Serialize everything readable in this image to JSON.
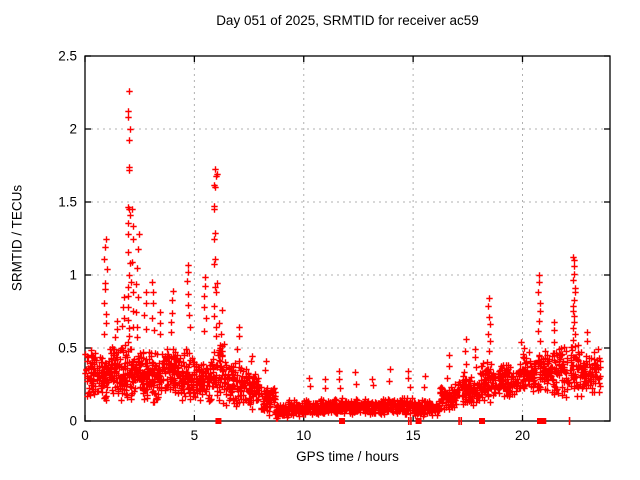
{
  "chart_data": {
    "type": "scatter",
    "title": "Day 051 of 2025, SRMTID for receiver ac59",
    "xlabel": "GPS time / hours",
    "ylabel": "SRMTID / TECUs",
    "xlim": [
      0,
      24
    ],
    "ylim": [
      0,
      2.5
    ],
    "xticks": [
      0,
      5,
      10,
      15,
      20
    ],
    "yticks": [
      0,
      0.5,
      1,
      1.5,
      2,
      2.5
    ],
    "grid": true,
    "legend": "none",
    "marker": {
      "shape": "plus",
      "color": "#ff0000",
      "size": 7
    },
    "colors": {
      "points": "#ff0000",
      "grid": "#b0b0b0",
      "axis": "#000000",
      "text": "#000000",
      "background": "#ffffff"
    },
    "max_point": {
      "x": 2.0,
      "y": 2.27
    },
    "data_x_end": 23.55,
    "bands": [
      [
        0.0,
        0.5,
        60,
        0.15,
        0.5
      ],
      [
        0.5,
        1.0,
        60,
        0.13,
        0.46
      ],
      [
        1.0,
        1.6,
        70,
        0.15,
        0.52
      ],
      [
        1.6,
        2.2,
        72,
        0.12,
        0.55
      ],
      [
        2.2,
        3.0,
        95,
        0.13,
        0.52
      ],
      [
        3.0,
        3.6,
        70,
        0.1,
        0.5
      ],
      [
        3.6,
        4.4,
        95,
        0.15,
        0.56
      ],
      [
        4.4,
        5.2,
        85,
        0.12,
        0.5
      ],
      [
        5.2,
        5.8,
        60,
        0.1,
        0.46
      ],
      [
        5.8,
        6.4,
        60,
        0.1,
        0.55
      ],
      [
        6.4,
        7.2,
        80,
        0.1,
        0.46
      ],
      [
        7.2,
        8.0,
        80,
        0.08,
        0.38
      ],
      [
        8.0,
        8.7,
        70,
        0.04,
        0.26
      ],
      [
        8.7,
        9.3,
        70,
        0.02,
        0.12
      ],
      [
        9.3,
        10.5,
        115,
        0.03,
        0.15
      ],
      [
        10.5,
        12.0,
        135,
        0.04,
        0.16
      ],
      [
        12.0,
        13.5,
        135,
        0.04,
        0.16
      ],
      [
        13.5,
        15.0,
        135,
        0.04,
        0.17
      ],
      [
        15.0,
        16.2,
        115,
        0.03,
        0.15
      ],
      [
        16.2,
        17.0,
        85,
        0.06,
        0.26
      ],
      [
        17.0,
        18.0,
        95,
        0.08,
        0.32
      ],
      [
        18.0,
        18.8,
        85,
        0.12,
        0.42
      ],
      [
        18.8,
        19.8,
        95,
        0.15,
        0.4
      ],
      [
        19.8,
        20.6,
        85,
        0.18,
        0.48
      ],
      [
        20.6,
        21.6,
        95,
        0.18,
        0.5
      ],
      [
        21.6,
        22.6,
        95,
        0.15,
        0.55
      ],
      [
        22.6,
        23.55,
        90,
        0.15,
        0.5
      ]
    ],
    "spikes": [
      {
        "x": 0.92,
        "ys": [
          1.25,
          1.19,
          1.1,
          1.04,
          0.95,
          0.9,
          0.82,
          0.74,
          0.66,
          0.6
        ]
      },
      {
        "x": 1.45,
        "ys": [
          0.68,
          0.62,
          0.58
        ]
      },
      {
        "x": 1.75,
        "ys": [
          0.85,
          0.78,
          0.7,
          0.64
        ]
      },
      {
        "x": 2.0,
        "ys": [
          2.27,
          2.12,
          2.08,
          2.0,
          1.92,
          1.73,
          1.71,
          1.47,
          1.45,
          1.4,
          1.36,
          1.28,
          1.15,
          1.08,
          1.0,
          0.92,
          0.85,
          0.78,
          0.7,
          0.64,
          0.58
        ]
      },
      {
        "x": 2.15,
        "ys": [
          1.45,
          1.33,
          1.25,
          1.1,
          0.95,
          0.88,
          0.75,
          0.65
        ]
      },
      {
        "x": 2.4,
        "ys": [
          1.28,
          1.17,
          1.05,
          0.95,
          0.85,
          0.75,
          0.65,
          0.58
        ]
      },
      {
        "x": 2.75,
        "ys": [
          0.88,
          0.8,
          0.72,
          0.63
        ]
      },
      {
        "x": 3.1,
        "ys": [
          0.95,
          0.88,
          0.8,
          0.7,
          0.62
        ]
      },
      {
        "x": 3.45,
        "ys": [
          0.75,
          0.68,
          0.6
        ]
      },
      {
        "x": 4.0,
        "ys": [
          0.9,
          0.82,
          0.75,
          0.68,
          0.6
        ]
      },
      {
        "x": 4.75,
        "ys": [
          1.08,
          1.02,
          0.96,
          0.88,
          0.8,
          0.72,
          0.64
        ]
      },
      {
        "x": 5.5,
        "ys": [
          0.98,
          0.92,
          0.86,
          0.78,
          0.7,
          0.62
        ]
      },
      {
        "x": 5.95,
        "ys": [
          1.73,
          1.7,
          1.68,
          1.62,
          1.6,
          1.48,
          1.45,
          1.28,
          1.25,
          1.1,
          1.08,
          0.95,
          0.92,
          0.88,
          0.8,
          0.72,
          0.65,
          0.58
        ]
      },
      {
        "x": 6.2,
        "ys": [
          0.75,
          0.68,
          0.6,
          0.52
        ]
      },
      {
        "x": 7.0,
        "ys": [
          0.65,
          0.58,
          0.5
        ]
      },
      {
        "x": 7.6,
        "ys": [
          0.45,
          0.4
        ]
      },
      {
        "x": 8.3,
        "ys": [
          0.42,
          0.35
        ]
      },
      {
        "x": 10.3,
        "ys": [
          0.3,
          0.25
        ]
      },
      {
        "x": 11.0,
        "ys": [
          0.28,
          0.22
        ]
      },
      {
        "x": 11.6,
        "ys": [
          0.35,
          0.28,
          0.22
        ]
      },
      {
        "x": 12.4,
        "ys": [
          0.33,
          0.26
        ]
      },
      {
        "x": 13.1,
        "ys": [
          0.3,
          0.24
        ]
      },
      {
        "x": 13.9,
        "ys": [
          0.35,
          0.28
        ]
      },
      {
        "x": 14.8,
        "ys": [
          0.35,
          0.3,
          0.24
        ]
      },
      {
        "x": 15.55,
        "ys": [
          0.3,
          0.24
        ]
      },
      {
        "x": 16.6,
        "ys": [
          0.45,
          0.38,
          0.3
        ]
      },
      {
        "x": 17.4,
        "ys": [
          0.55,
          0.48,
          0.4,
          0.33
        ]
      },
      {
        "x": 17.85,
        "ys": [
          0.5,
          0.43,
          0.36
        ]
      },
      {
        "x": 18.45,
        "ys": [
          0.85,
          0.78,
          0.72,
          0.66,
          0.6,
          0.54,
          0.48
        ]
      },
      {
        "x": 20.0,
        "ys": [
          0.55,
          0.5,
          0.44
        ]
      },
      {
        "x": 20.75,
        "ys": [
          1.0,
          0.95,
          0.88,
          0.82,
          0.75,
          0.68,
          0.62,
          0.55
        ]
      },
      {
        "x": 21.4,
        "ys": [
          0.68,
          0.62,
          0.55
        ]
      },
      {
        "x": 22.35,
        "ys": [
          1.13,
          1.1,
          1.05,
          1.0,
          0.97,
          0.92,
          0.88,
          0.84,
          0.8,
          0.76,
          0.72,
          0.68,
          0.64,
          0.6,
          0.56,
          0.52
        ]
      },
      {
        "x": 22.9,
        "ys": [
          0.62,
          0.55
        ]
      }
    ],
    "zero_points": [
      {
        "x": 6.1,
        "style": "square"
      },
      {
        "x": 11.75,
        "style": "square"
      },
      {
        "x": 14.8,
        "style": "tick"
      },
      {
        "x": 14.9,
        "style": "tick"
      },
      {
        "x": 15.25,
        "style": "square"
      },
      {
        "x": 17.1,
        "style": "tick"
      },
      {
        "x": 17.2,
        "style": "tick"
      },
      {
        "x": 18.15,
        "style": "square"
      },
      {
        "x": 20.8,
        "style": "square"
      },
      {
        "x": 20.95,
        "style": "square"
      },
      {
        "x": 22.15,
        "style": "tick"
      }
    ]
  }
}
